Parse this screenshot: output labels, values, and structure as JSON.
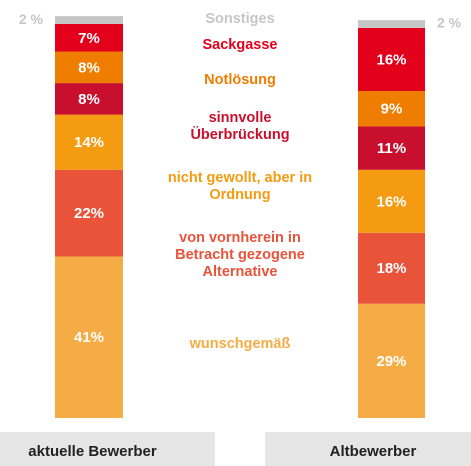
{
  "chart_data": {
    "type": "stacked-bar",
    "categories": [
      "aktuelle Bewerber",
      "Altbewerber"
    ],
    "series": [
      {
        "name": "wunschgemäß",
        "color": "#f5ac45",
        "values": [
          41,
          29
        ],
        "value_labels": [
          "41%",
          "29%"
        ]
      },
      {
        "name": "von vornherein in Betracht gezogene Alternative",
        "color": "#e8533a",
        "values": [
          22,
          18
        ],
        "value_labels": [
          "22%",
          "18%"
        ]
      },
      {
        "name": "nicht gewollt, aber in Ordnung",
        "color": "#f49b12",
        "values": [
          14,
          16
        ],
        "value_labels": [
          "14%",
          "16%"
        ]
      },
      {
        "name": "sinnvolle Überbrückung",
        "color": "#c8102e",
        "values": [
          8,
          11
        ],
        "value_labels": [
          "8%",
          "11%"
        ]
      },
      {
        "name": "Notlösung",
        "color": "#ee7d00",
        "values": [
          8,
          9
        ],
        "value_labels": [
          "8%",
          "9%"
        ]
      },
      {
        "name": "Sackgasse",
        "color": "#e2001a",
        "values": [
          7,
          16
        ],
        "value_labels": [
          "7%",
          "16%"
        ]
      },
      {
        "name": "Sonstiges",
        "color": "#c6c6c6",
        "values": [
          2,
          2
        ],
        "value_labels": [
          "2 %",
          "2 %"
        ]
      }
    ]
  }
}
